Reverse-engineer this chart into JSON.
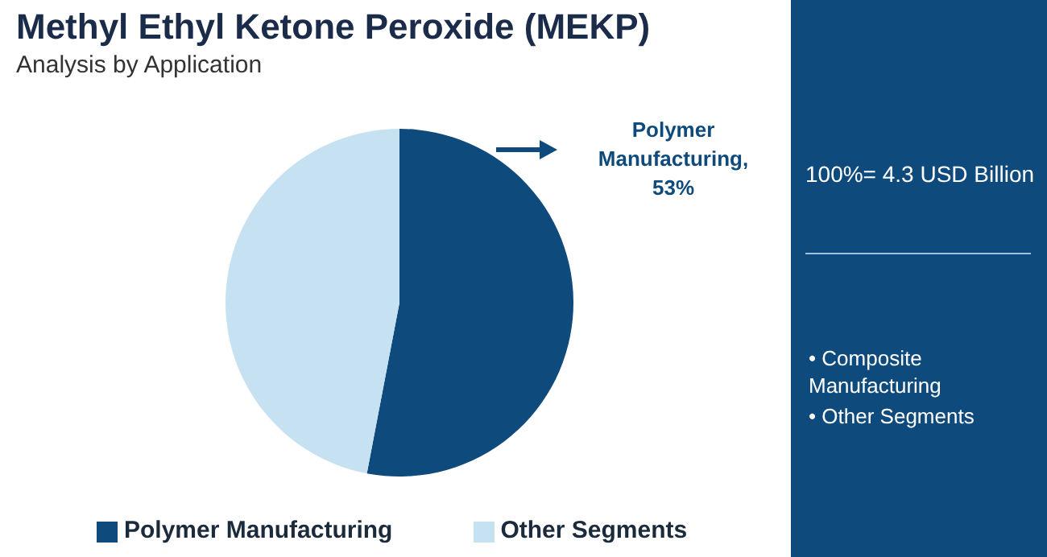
{
  "chart_data": {
    "type": "pie",
    "title": "Methyl Ethyl Ketone Peroxide (MEKP)",
    "subtitle": "Analysis by Application",
    "categories": [
      "Polymer Manufacturing",
      "Other Segments"
    ],
    "values": [
      53,
      47
    ],
    "colors": [
      "#0e4b7c",
      "#c6e2f2"
    ],
    "value_labels": [
      "Polymer Manufacturing, 53%",
      null
    ],
    "legend": "bottom",
    "annotations": [
      "100%= 4.3 USD Billion",
      "• Composite Manufacturing",
      "• Other Segments"
    ]
  }
}
